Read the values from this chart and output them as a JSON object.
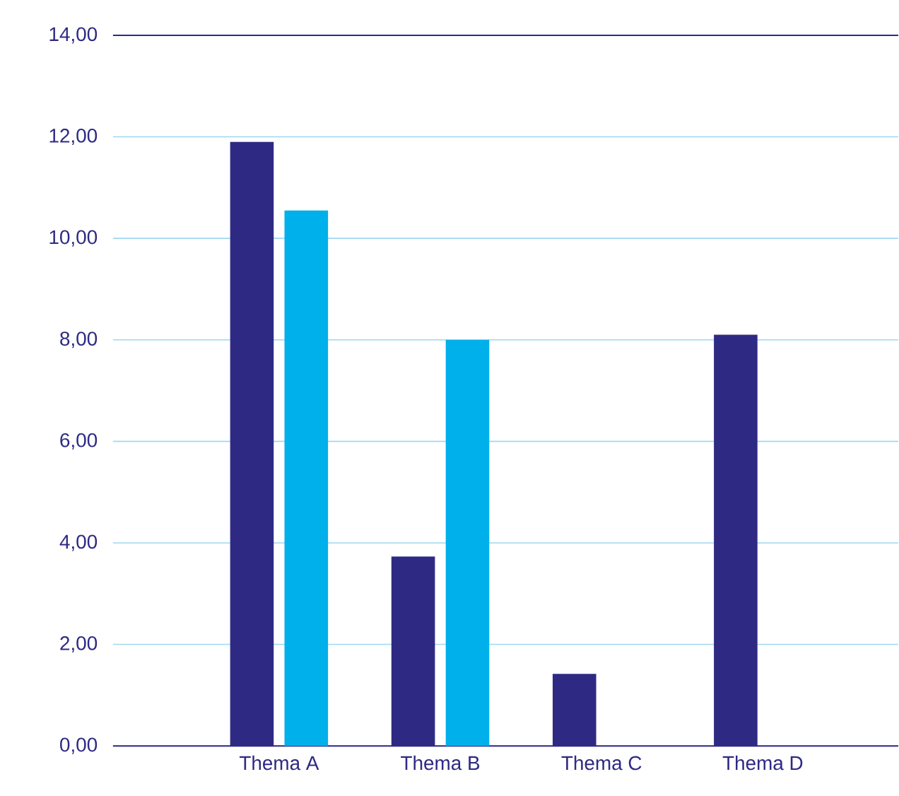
{
  "chart_data": {
    "type": "bar",
    "categories": [
      "Thema A",
      "Thema B",
      "Thema C",
      "Thema D"
    ],
    "series": [
      {
        "color": "#2e2a84",
        "values": [
          11.9,
          3.73,
          1.42,
          8.1
        ]
      },
      {
        "color": "#00b0ea",
        "values": [
          10.55,
          8.0,
          null,
          null
        ]
      }
    ],
    "ylim": [
      0,
      14
    ],
    "yticks": [
      {
        "value": 0,
        "label": "0,00"
      },
      {
        "value": 2,
        "label": "2,00"
      },
      {
        "value": 4,
        "label": "4,00"
      },
      {
        "value": 6,
        "label": "6,00"
      },
      {
        "value": 8,
        "label": "8,00"
      },
      {
        "value": 10,
        "label": "10,00"
      },
      {
        "value": 12,
        "label": "12,00"
      },
      {
        "value": 14,
        "label": "14,00"
      }
    ],
    "grid": "y"
  }
}
